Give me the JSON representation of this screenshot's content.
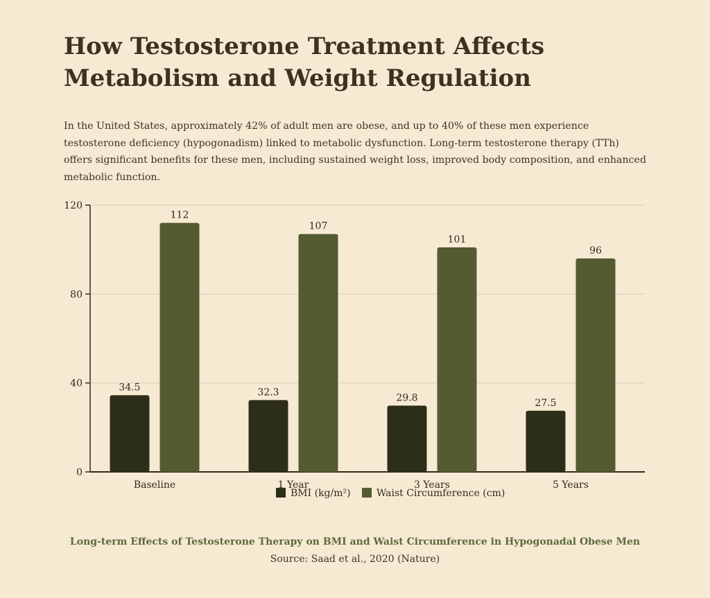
{
  "title_lines": [
    "How Testosterone Treatment Affects",
    "Metabolism and Weight Regulation"
  ],
  "intro": "In the United States, approximately 42% of adult men are obese, and up to 40% of these men experience testosterone deficiency (hypogonadism) linked to metabolic dysfunction. Long-term testosterone therapy (TTh) offers significant benefits for these men, including sustained weight loss, improved body composition, and enhanced metabolic function.",
  "caption": "Long-term Effects of Testosterone Therapy on BMI and Waist Circumference in Hypogonadal Obese Men",
  "source": "Source: Saad et al., 2020 (Nature)",
  "colors": {
    "bmi": "#2d2e1a",
    "waist": "#545b32",
    "grid": "#d9cfb6",
    "axis": "#2e2a1f"
  },
  "chart_data": {
    "type": "bar",
    "categories": [
      "Baseline",
      "1 Year",
      "3 Years",
      "5 Years"
    ],
    "series": [
      {
        "name": "BMI (kg/m²)",
        "values": [
          34.5,
          32.3,
          29.8,
          27.5
        ],
        "labels": [
          "34.5",
          "32.3",
          "29.8",
          "27.5"
        ]
      },
      {
        "name": "Waist Circumference (cm)",
        "values": [
          112,
          107,
          101,
          96
        ],
        "labels": [
          "112",
          "107",
          "101",
          "96"
        ]
      }
    ],
    "ylim": [
      0,
      120
    ],
    "yticks": [
      0,
      40,
      80,
      120
    ],
    "grid": true,
    "legend_position": "bottom-center"
  }
}
